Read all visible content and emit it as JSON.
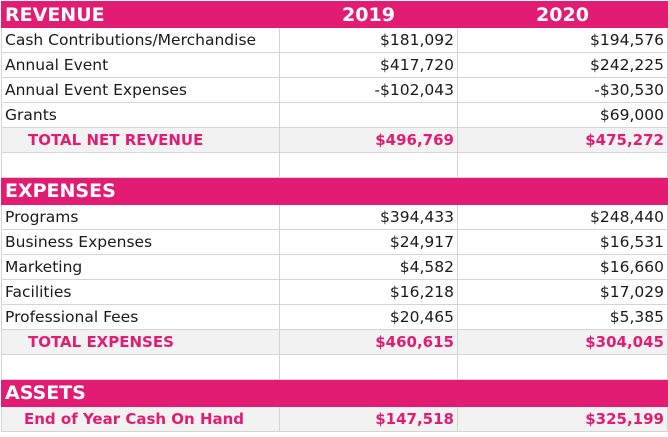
{
  "revenue": {
    "heading": "REVENUE",
    "year1": "2019",
    "year2": "2020",
    "rows": [
      {
        "label": "Cash Contributions/Merchandise",
        "v2019": "$181,092",
        "v2020": "$194,576"
      },
      {
        "label": "Annual Event",
        "v2019": "$417,720",
        "v2020": "$242,225"
      },
      {
        "label": "Annual Event Expenses",
        "v2019": "-$102,043",
        "v2020": "-$30,530"
      },
      {
        "label": "Grants",
        "v2019": "",
        "v2020": "$69,000"
      }
    ],
    "total": {
      "label": "TOTAL NET REVENUE",
      "v2019": "$496,769",
      "v2020": "$475,272"
    }
  },
  "expenses": {
    "heading": "EXPENSES",
    "rows": [
      {
        "label": "Programs",
        "v2019": "$394,433",
        "v2020": "$248,440"
      },
      {
        "label": "Business Expenses",
        "v2019": "$24,917",
        "v2020": "$16,531"
      },
      {
        "label": "Marketing",
        "v2019": "$4,582",
        "v2020": "$16,660"
      },
      {
        "label": "Facilities",
        "v2019": "$16,218",
        "v2020": "$17,029"
      },
      {
        "label": "Professional Fees",
        "v2019": "$20,465",
        "v2020": "$5,385"
      }
    ],
    "total": {
      "label": "TOTAL EXPENSES",
      "v2019": "$460,615",
      "v2020": "$304,045"
    }
  },
  "assets": {
    "heading": "ASSETS",
    "row": {
      "label": "End of Year Cash On Hand",
      "v2019": "$147,518",
      "v2020": "$325,199"
    }
  },
  "colors": {
    "accent": "#e31c73",
    "total_bg": "#f2f2f2",
    "grid": "#d4d4d4"
  }
}
